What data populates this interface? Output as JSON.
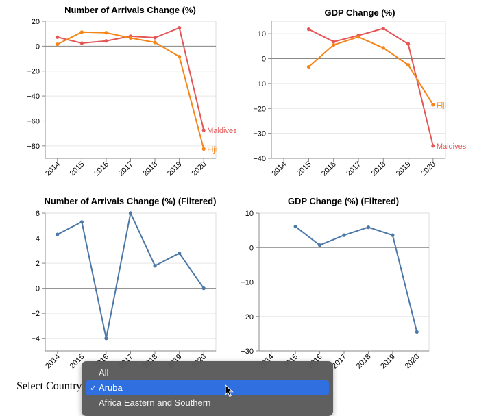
{
  "colors": {
    "fiji": "#f58518",
    "maldives": "#e45756",
    "filtered": "#4c78a8",
    "zero": "#888888",
    "grid": "#e6e6e6"
  },
  "chart_data": [
    {
      "type": "line",
      "title": "Number of Arrivals Change (%)",
      "categories": [
        "2014",
        "2015",
        "2016",
        "2017",
        "2018",
        "2019",
        "2020"
      ],
      "ylim": [
        -90,
        20
      ],
      "yticks": [
        20,
        0,
        -20,
        -40,
        -60,
        -80
      ],
      "series": [
        {
          "name": "Maldives",
          "color": "#e45756",
          "values": [
            7.2,
            2.4,
            4.2,
            8.0,
            6.8,
            14.7,
            -67.4
          ]
        },
        {
          "name": "Fiji",
          "color": "#f58518",
          "values": [
            1.5,
            11.3,
            10.8,
            6.6,
            3.0,
            -8.4,
            -82.5
          ]
        }
      ]
    },
    {
      "type": "line",
      "title": "GDP Change (%)",
      "categories": [
        "2014",
        "2015",
        "2016",
        "2017",
        "2018",
        "2019",
        "2020"
      ],
      "ylim": [
        -40,
        15
      ],
      "yticks": [
        10,
        0,
        -10,
        -20,
        -30,
        -40
      ],
      "series": [
        {
          "name": "Maldives",
          "color": "#e45756",
          "values": [
            null,
            11.8,
            6.8,
            9.3,
            12.1,
            5.9,
            -35.0
          ]
        },
        {
          "name": "Fiji",
          "color": "#f58518",
          "values": [
            null,
            -3.3,
            5.5,
            8.7,
            4.3,
            -2.5,
            -18.5
          ]
        }
      ]
    },
    {
      "type": "line",
      "title": "Number of Arrivals Change (%) (Filtered)",
      "categories": [
        "2014",
        "2015",
        "2016",
        "2017",
        "2018",
        "2019",
        "2020"
      ],
      "ylim": [
        -5,
        6
      ],
      "yticks": [
        6,
        4,
        2,
        0,
        -2,
        -4
      ],
      "series": [
        {
          "color": "#4c78a8",
          "values": [
            4.3,
            5.3,
            -4.0,
            6.0,
            1.8,
            2.8,
            0.0
          ]
        }
      ]
    },
    {
      "type": "line",
      "title": "GDP Change (%) (Filtered)",
      "categories": [
        "2014",
        "2015",
        "2016",
        "2017",
        "2018",
        "2019",
        "2020"
      ],
      "ylim": [
        -30,
        10
      ],
      "yticks": [
        10,
        0,
        -10,
        -20,
        -30
      ],
      "series": [
        {
          "color": "#4c78a8",
          "values": [
            null,
            6.1,
            0.7,
            3.6,
            5.9,
            3.6,
            -24.5
          ]
        }
      ]
    }
  ],
  "controls": {
    "select_label": "Select Country",
    "options": [
      {
        "label": "All",
        "selected": false
      },
      {
        "label": "Aruba",
        "selected": true
      },
      {
        "label": "Africa Eastern and Southern",
        "selected": false
      }
    ],
    "checkmark": "✓"
  }
}
